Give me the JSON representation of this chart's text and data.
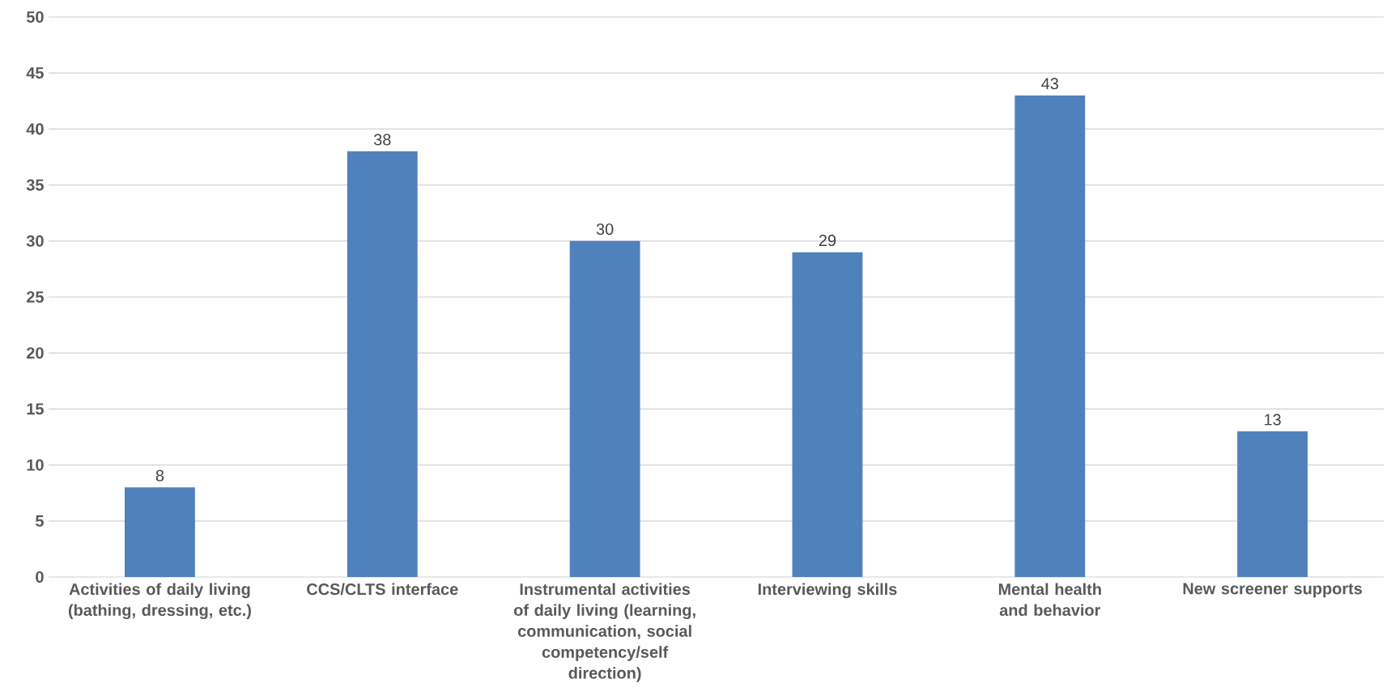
{
  "chart_data": {
    "type": "bar",
    "categories": [
      "Activities of daily living (bathing, dressing, etc.)",
      "CCS/CLTS interface",
      "Instrumental activities of daily living (learning, communication, social competency/self direction)",
      "Interviewing skills",
      "Mental health and behavior",
      "New screener supports"
    ],
    "values": [
      8,
      38,
      30,
      29,
      43,
      13
    ],
    "color": "#4f81bd",
    "ylim": [
      0,
      50
    ],
    "yticks": [
      0,
      5,
      10,
      15,
      20,
      25,
      30,
      35,
      40,
      45,
      50
    ],
    "grid": "y",
    "data_labels": true
  }
}
